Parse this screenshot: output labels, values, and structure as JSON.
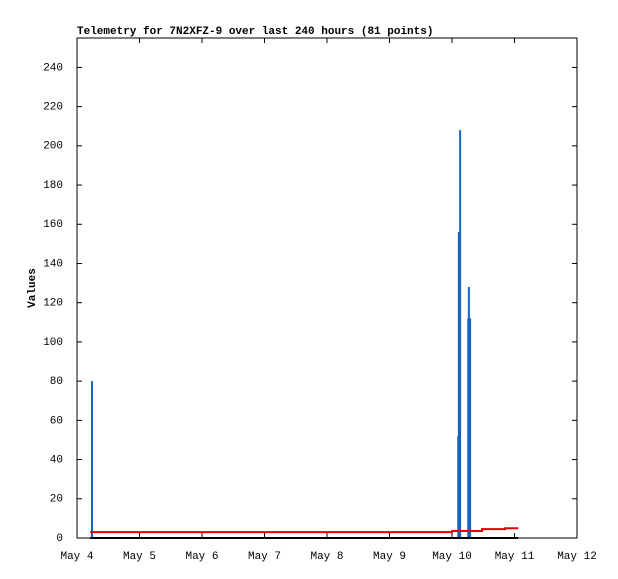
{
  "chart_data": {
    "type": "line",
    "title": "Telemetry for 7N2XFZ-9 over last 240 hours (81 points)",
    "y_label": "Values",
    "xlim": [
      0,
      8
    ],
    "xticks": [
      {
        "value": 0,
        "label": "May 4"
      },
      {
        "value": 1,
        "label": "May 5"
      },
      {
        "value": 2,
        "label": "May 6"
      },
      {
        "value": 3,
        "label": "May 7"
      },
      {
        "value": 4,
        "label": "May 8"
      },
      {
        "value": 5,
        "label": "May 9"
      },
      {
        "value": 6,
        "label": "May 10"
      },
      {
        "value": 7,
        "label": "May 11"
      },
      {
        "value": 8,
        "label": "May 12"
      }
    ],
    "ylim": [
      0,
      255
    ],
    "yticks": [
      0,
      20,
      40,
      60,
      80,
      100,
      120,
      140,
      160,
      180,
      200,
      220,
      240
    ],
    "series": [
      {
        "style": "impulses",
        "color": "#1565c0",
        "x": [
          0.24,
          6.1,
          6.11,
          6.13,
          6.26,
          6.27,
          6.29
        ],
        "values": [
          80,
          52,
          156,
          208,
          112,
          128,
          112
        ]
      },
      {
        "style": "steps",
        "color": "#e00000",
        "x": [
          0.21,
          6.0,
          6.48,
          6.85,
          7.06
        ],
        "values": [
          3,
          3.6,
          4.5,
          5,
          5
        ]
      },
      {
        "style": "steps",
        "color": "#000000",
        "x": [
          0.21,
          7.06
        ],
        "values": [
          0,
          0
        ]
      }
    ]
  }
}
